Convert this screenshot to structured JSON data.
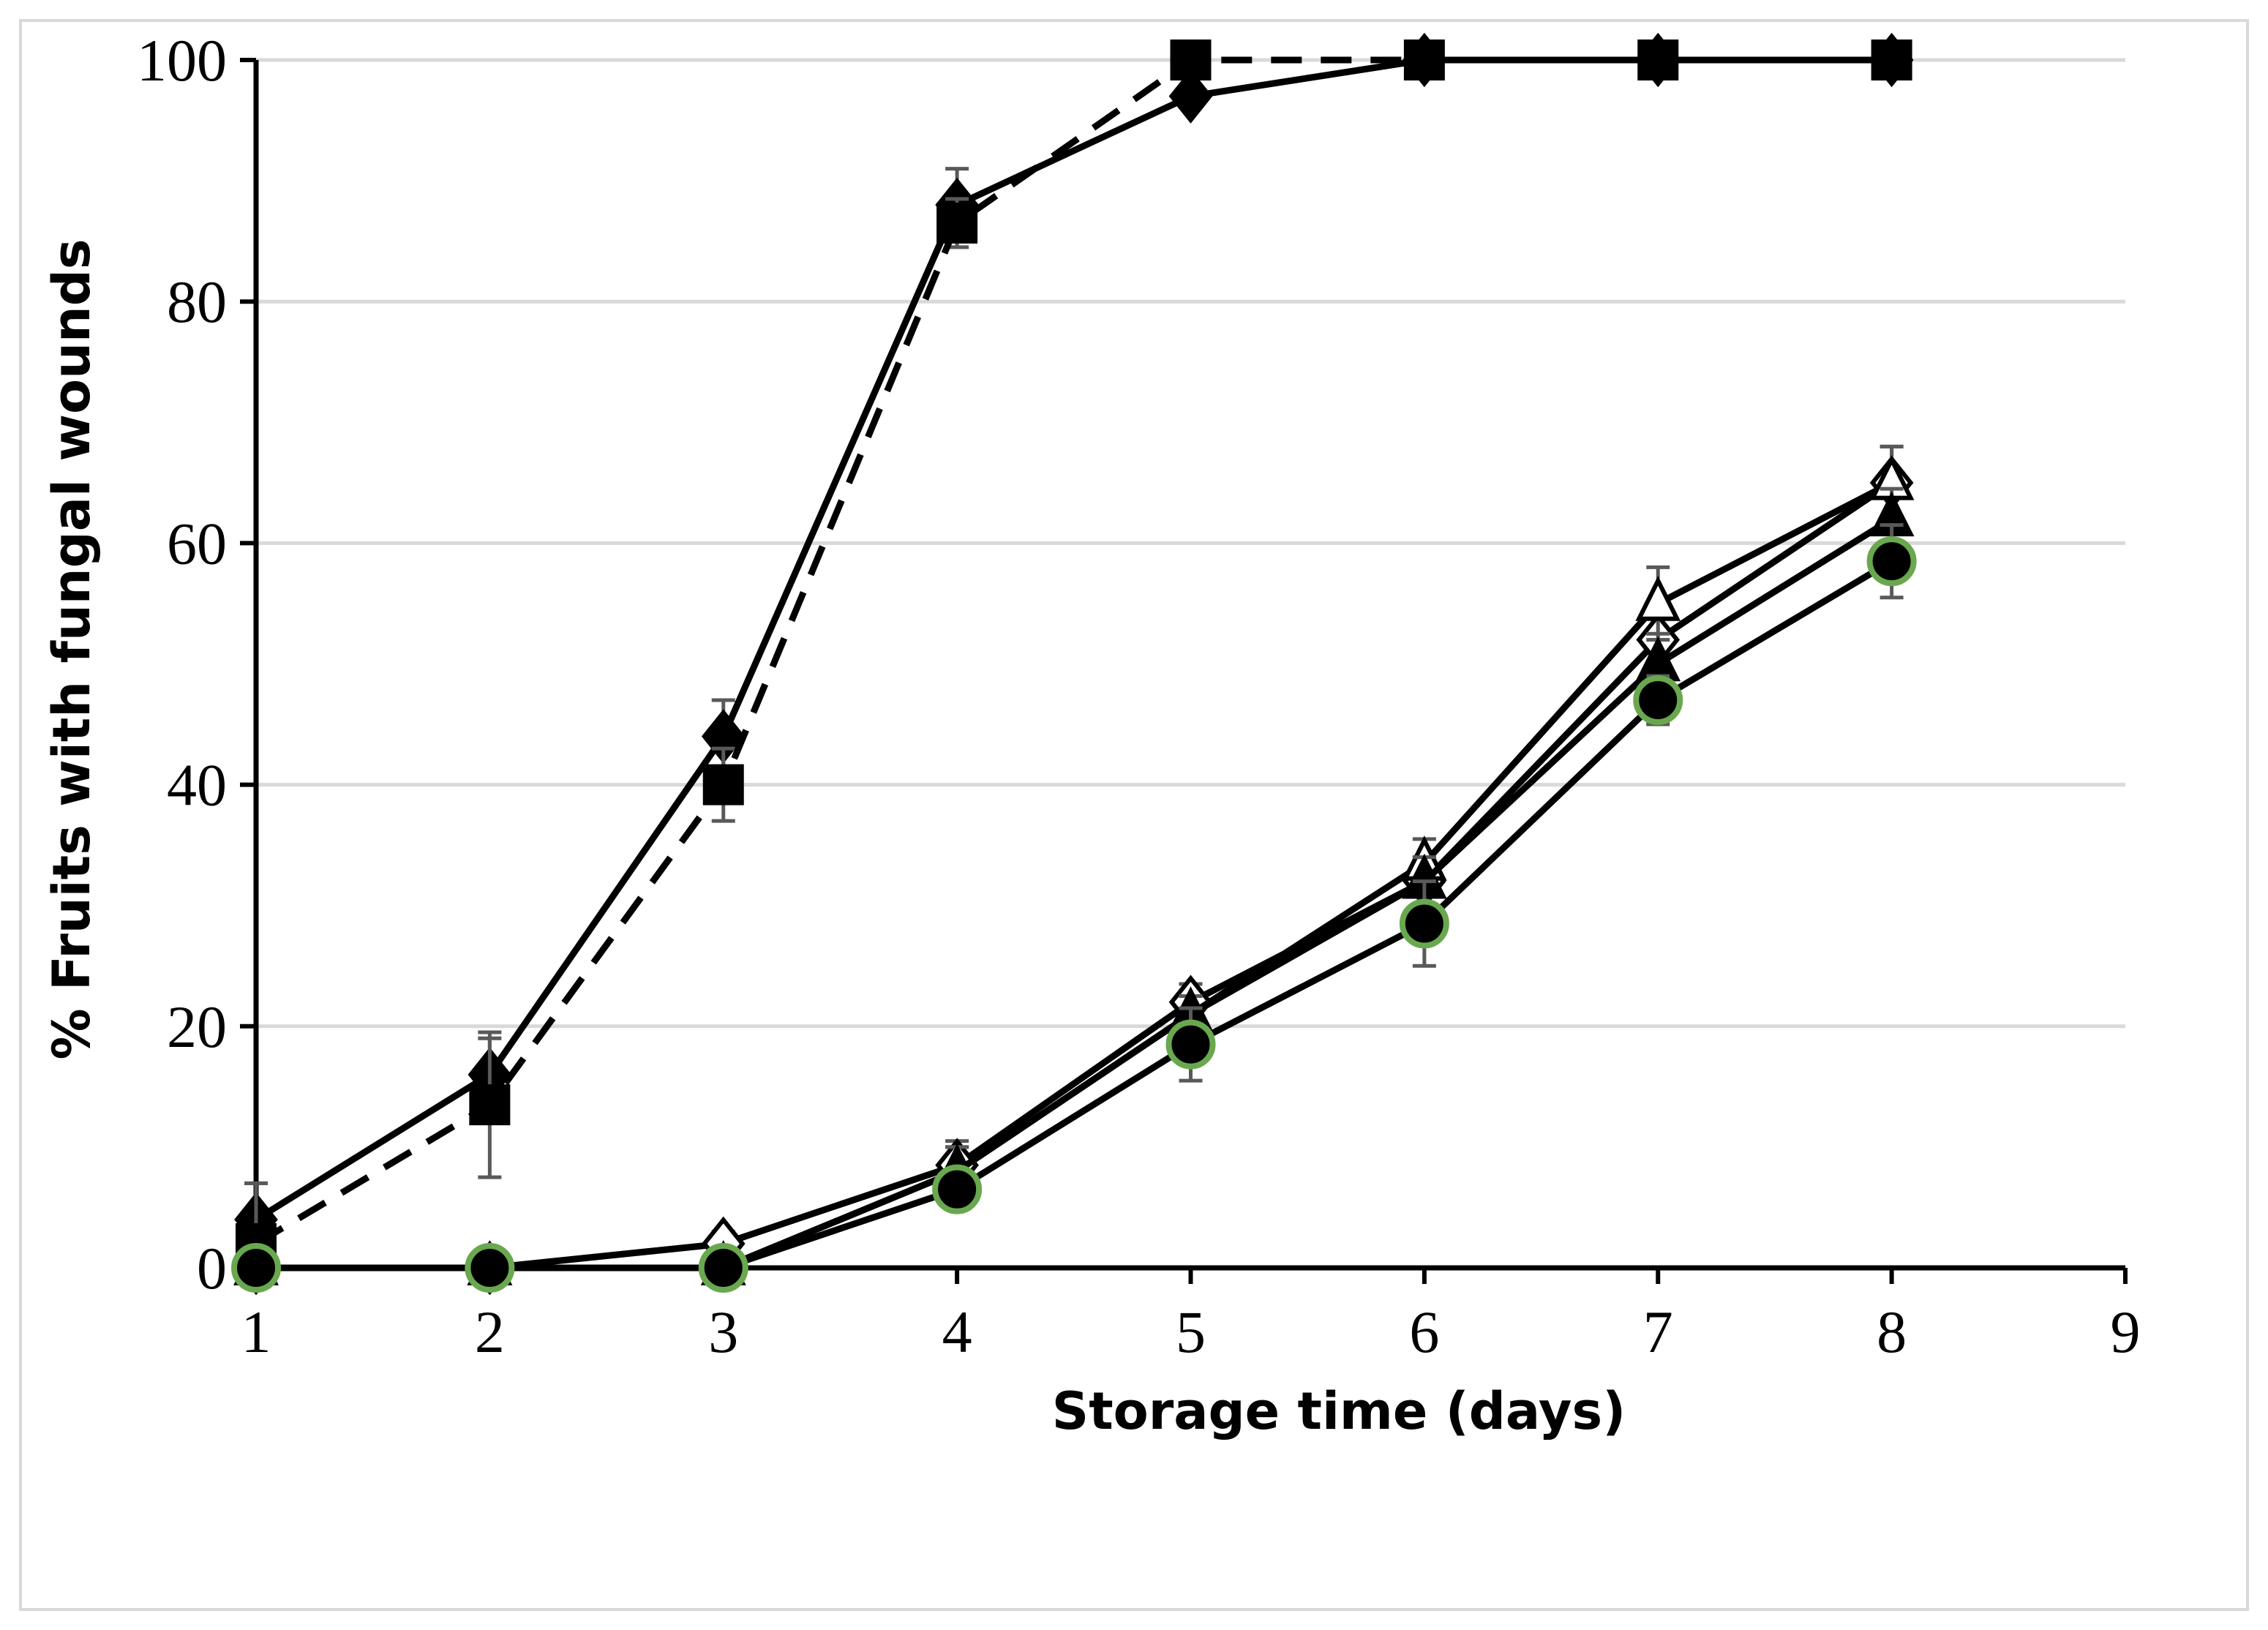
{
  "chart_data": {
    "type": "line",
    "title": "",
    "xlabel": "Storage time (days)",
    "ylabel": "% Fruits with fungal wounds",
    "xlim": [
      1,
      9
    ],
    "ylim": [
      0,
      100
    ],
    "x_ticks": [
      "1",
      "2",
      "3",
      "4",
      "5",
      "6",
      "7",
      "8",
      "9"
    ],
    "y_ticks": [
      "0",
      "20",
      "40",
      "60",
      "80",
      "100"
    ],
    "grid": "horizontal",
    "legend": "none",
    "x": [
      1,
      2,
      3,
      4,
      5,
      6,
      7,
      8
    ],
    "series": [
      {
        "marker": "diamond-filled",
        "line": "solid",
        "color": "#000000",
        "values": [
          4,
          16,
          44,
          88,
          97,
          100,
          100,
          100
        ],
        "err": [
          3,
          3,
          3,
          3,
          0,
          0,
          0,
          0
        ]
      },
      {
        "marker": "square-filled",
        "line": "dashed",
        "color": "#000000",
        "values": [
          2,
          13.5,
          40,
          86.5,
          100,
          100,
          100,
          100
        ],
        "err": [
          5,
          6,
          3,
          2,
          0,
          0,
          0,
          0
        ]
      },
      {
        "marker": "diamond-open",
        "line": "solid",
        "color": "#000000",
        "values": [
          0,
          0,
          2,
          8.5,
          22,
          32,
          52,
          65
        ],
        "err": [
          0,
          0,
          1,
          2,
          1.5,
          2,
          3,
          3
        ]
      },
      {
        "marker": "triangle-open",
        "line": "solid",
        "color": "#000000",
        "values": [
          0,
          0,
          0,
          8,
          21,
          33.5,
          55,
          65
        ],
        "err": [
          0,
          0,
          0,
          2,
          1.5,
          2,
          3,
          3
        ]
      },
      {
        "marker": "triangle-filled",
        "line": "solid",
        "color": "#000000",
        "values": [
          0,
          0,
          0,
          8,
          21,
          32,
          50,
          62
        ],
        "err": [
          0,
          0,
          0,
          2,
          1.5,
          2,
          2.5,
          2.5
        ]
      },
      {
        "marker": "circle-filled-green-edge",
        "line": "solid",
        "color": "#000000",
        "edge_color": "#6aa84f",
        "values": [
          0,
          0,
          0,
          6.5,
          18.5,
          28.5,
          47,
          58.5
        ],
        "err": [
          0,
          0,
          0,
          1.5,
          3,
          3.5,
          2,
          3
        ]
      }
    ]
  }
}
